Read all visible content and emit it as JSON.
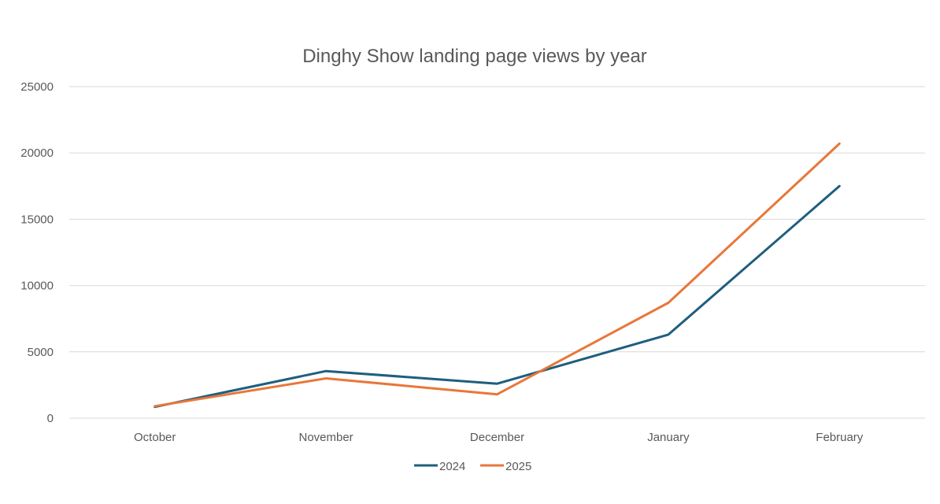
{
  "chart_data": {
    "type": "line",
    "title": "Dinghy Show landing page views by year",
    "xlabel": "",
    "ylabel": "",
    "categories": [
      "October",
      "November",
      "December",
      "January",
      "February"
    ],
    "ylim": [
      0,
      25000
    ],
    "yticks": [
      0,
      5000,
      10000,
      15000,
      20000,
      25000
    ],
    "grid": true,
    "legend_position": "bottom",
    "series": [
      {
        "name": "2024",
        "color": "#1f5e7e",
        "values": [
          850,
          3550,
          2600,
          6300,
          17500
        ]
      },
      {
        "name": "2025",
        "color": "#e8773a",
        "values": [
          900,
          3000,
          1800,
          8700,
          20700
        ]
      }
    ]
  }
}
